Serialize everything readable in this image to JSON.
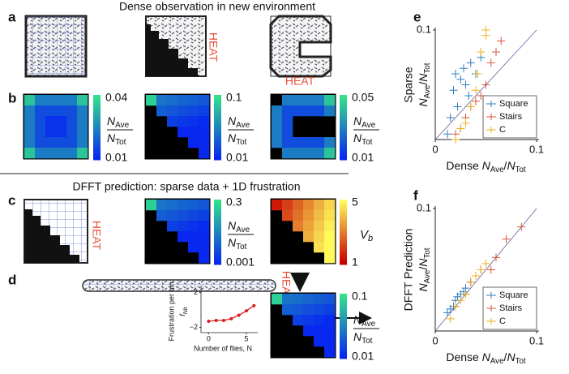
{
  "top_heading": "Dense observation in  new environment",
  "middle_heading": "DFFT prediction: sparse data + 1D frustration",
  "panel_labels": [
    "a",
    "b",
    "c",
    "d",
    "e",
    "f"
  ],
  "heat_label": "HEAT",
  "density_label": {
    "N": "N",
    "ave": "Ave",
    "slash": "/",
    "tot": "Tot"
  },
  "potential_label": {
    "V": "V",
    "b": "b"
  },
  "colorbars": {
    "b_square": {
      "max": 0.04,
      "min": 0.01
    },
    "b_stairs": {
      "max": 0.1,
      "min": 0.01
    },
    "b_c": {
      "max": 0.05,
      "min": 0.01
    },
    "c_sparse": {
      "max": 0.3,
      "min": 0.001
    },
    "c_potential": {
      "max": 5,
      "min": 1
    },
    "d_prediction": {
      "max": 0.1,
      "min": 0.01
    }
  },
  "inset": {
    "ylabel": "Frustration per bin",
    "ysymbol": "f",
    "ysub": "Nb",
    "xlabel": "Number of flies, N",
    "color": "#d62020",
    "x": [
      0,
      1,
      2,
      3,
      4,
      5,
      6
    ],
    "values": [
      -1.3,
      -1.2,
      -1.2,
      -1.0,
      -0.6,
      -0.1,
      0.5
    ],
    "xlim": [
      -1,
      6.5
    ],
    "ylim": [
      -2.6,
      2.8
    ],
    "xticks": [
      0,
      5
    ],
    "yticks": [
      2,
      {
        "value": -2,
        "label": "−2"
      }
    ]
  },
  "charts": [
    {
      "type": "scatter",
      "ylabel": "Sparse",
      "xlabel": "Dense",
      "xlim": [
        0,
        0.1
      ],
      "ylim": [
        0,
        0.1
      ],
      "xticks": [
        0,
        0.1
      ],
      "yticks": [
        0.1
      ],
      "legend": "lower right",
      "series": [
        {
          "name": "Square",
          "color": "#2f7fc1",
          "x": [
            0.012,
            0.015,
            0.018,
            0.02,
            0.022,
            0.025,
            0.028,
            0.03,
            0.033,
            0.035,
            0.04,
            0.045
          ],
          "values": [
            0.005,
            0.02,
            0.045,
            0.06,
            0.03,
            0.055,
            0.065,
            0.05,
            0.04,
            0.07,
            0.06,
            0.075
          ]
        },
        {
          "name": "Stairs",
          "color": "#d9593a",
          "x": [
            0.02,
            0.025,
            0.03,
            0.035,
            0.04,
            0.045,
            0.05,
            0.055,
            0.06,
            0.065
          ],
          "values": [
            0.005,
            0.01,
            0.02,
            0.03,
            0.035,
            0.04,
            0.05,
            0.07,
            0.08,
            0.09
          ]
        },
        {
          "name": "C",
          "color": "#edb120",
          "x": [
            0.02,
            0.025,
            0.03,
            0.035,
            0.04,
            0.042,
            0.045,
            0.05,
            0.05
          ],
          "values": [
            0.0,
            0.01,
            0.015,
            0.03,
            0.045,
            0.06,
            0.08,
            0.095,
            0.1
          ]
        }
      ]
    },
    {
      "type": "scatter",
      "ylabel": "DFFT Prediction",
      "xlabel": "Dense",
      "xlim": [
        0,
        0.1
      ],
      "ylim": [
        0,
        0.1
      ],
      "xticks": [
        0,
        0.1
      ],
      "yticks": [
        0.1
      ],
      "legend": "lower right",
      "series": [
        {
          "name": "Square",
          "color": "#2f7fc1",
          "x": [
            0.012,
            0.015,
            0.018,
            0.02,
            0.022,
            0.025,
            0.028,
            0.03,
            0.035
          ],
          "values": [
            0.015,
            0.018,
            0.02,
            0.025,
            0.028,
            0.03,
            0.032,
            0.035,
            0.04
          ]
        },
        {
          "name": "Stairs",
          "color": "#d9593a",
          "x": [
            0.02,
            0.03,
            0.035,
            0.04,
            0.045,
            0.05,
            0.055,
            0.06,
            0.07,
            0.085
          ],
          "values": [
            0.02,
            0.03,
            0.04,
            0.045,
            0.05,
            0.055,
            0.05,
            0.06,
            0.075,
            0.085
          ]
        },
        {
          "name": "C",
          "color": "#edb120",
          "x": [
            0.015,
            0.02,
            0.025,
            0.03,
            0.035,
            0.04,
            0.045,
            0.05
          ],
          "values": [
            0.01,
            0.02,
            0.025,
            0.03,
            0.04,
            0.045,
            0.05,
            0.055
          ]
        }
      ]
    }
  ]
}
